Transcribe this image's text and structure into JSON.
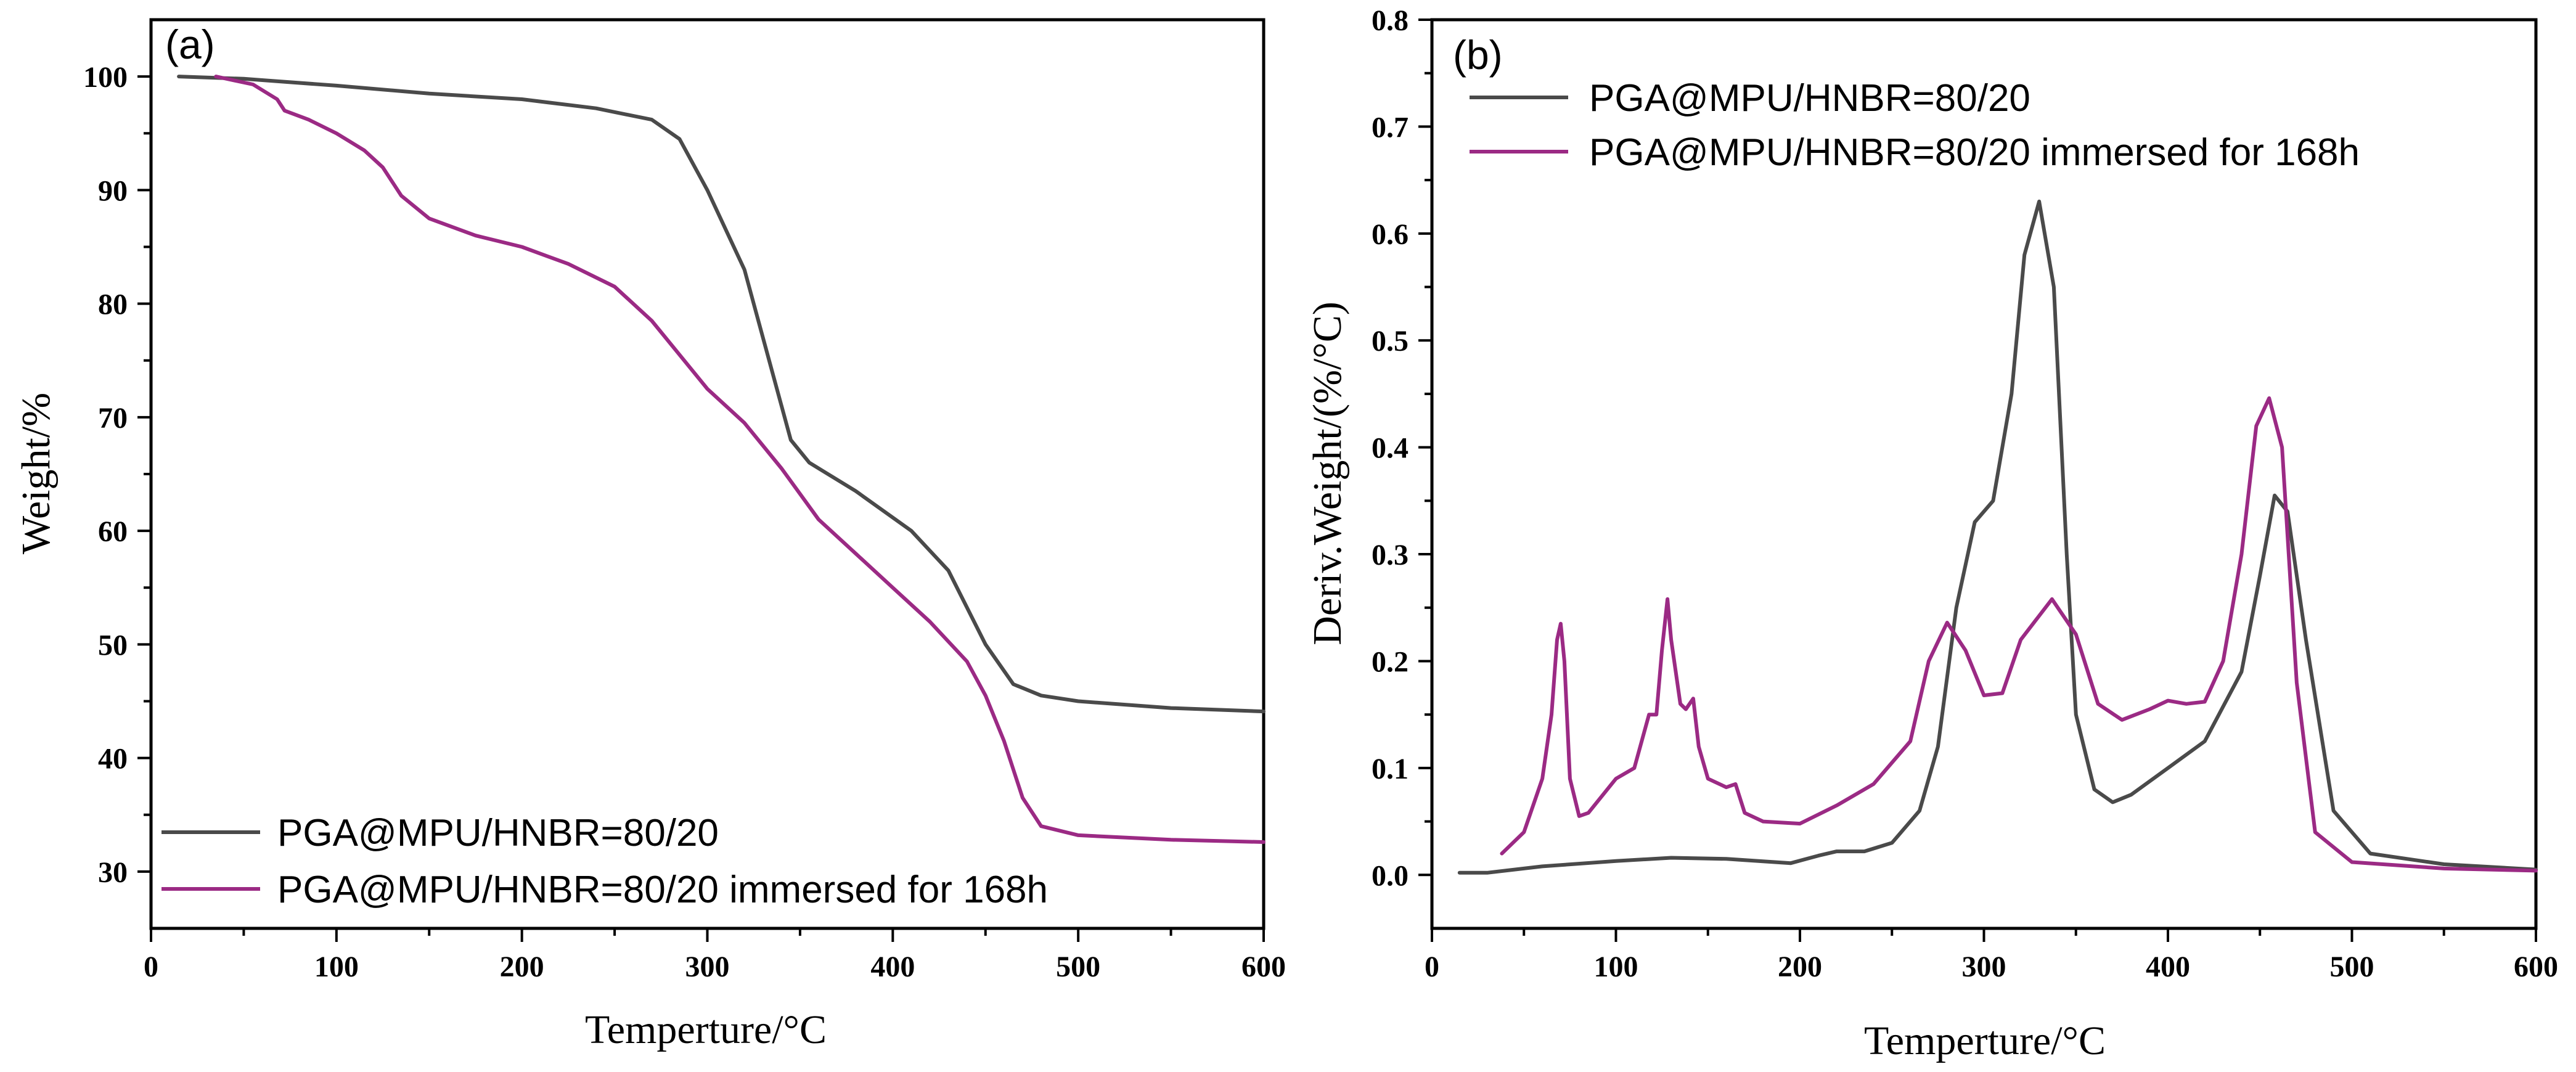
{
  "chart_data": [
    {
      "type": "line",
      "panel_label": "(a)",
      "xlabel": "Temperture/°C",
      "ylabel": "Weight/%",
      "xlim": [
        0,
        600
      ],
      "ylim": [
        25,
        105
      ],
      "xticks": [
        0,
        100,
        200,
        300,
        400,
        500,
        600
      ],
      "yticks": [
        30,
        40,
        50,
        60,
        70,
        80,
        90,
        100
      ],
      "legend_position": "bottom-left",
      "series": [
        {
          "name": "PGA@MPU/HNBR=80/20",
          "color": "#4a4a4a",
          "x": [
            15,
            50,
            100,
            150,
            200,
            240,
            270,
            285,
            300,
            320,
            335,
            345,
            355,
            380,
            410,
            430,
            450,
            465,
            480,
            500,
            550,
            600
          ],
          "y": [
            100,
            99.8,
            99.2,
            98.5,
            98.0,
            97.2,
            96.2,
            94.5,
            90,
            83,
            74,
            68,
            66,
            63.5,
            60,
            56.5,
            50,
            46.5,
            45.5,
            45.0,
            44.4,
            44.1
          ]
        },
        {
          "name": "PGA@MPU/HNBR=80/20 immersed for 168h",
          "color": "#9b2a84",
          "x": [
            35,
            55,
            68,
            72,
            85,
            100,
            115,
            125,
            135,
            150,
            175,
            200,
            225,
            250,
            270,
            285,
            300,
            320,
            340,
            360,
            380,
            400,
            420,
            440,
            450,
            460,
            470,
            480,
            500,
            550,
            600
          ],
          "y": [
            100,
            99.3,
            98.0,
            97.0,
            96.2,
            95.0,
            93.5,
            92.0,
            89.5,
            87.5,
            86.0,
            85.0,
            83.5,
            81.5,
            78.5,
            75.5,
            72.5,
            69.5,
            65.5,
            61.0,
            58.0,
            55.0,
            52.0,
            48.5,
            45.5,
            41.5,
            36.5,
            34.0,
            33.2,
            32.8,
            32.6
          ]
        }
      ]
    },
    {
      "type": "line",
      "panel_label": "(b)",
      "xlabel": "Temperture/°C",
      "ylabel": "Deriv.Weight/(%/°C)",
      "xlim": [
        0,
        600
      ],
      "ylim": [
        -0.05,
        0.8
      ],
      "xticks": [
        0,
        100,
        200,
        300,
        400,
        500,
        600
      ],
      "yticks": [
        0.0,
        0.1,
        0.2,
        0.3,
        0.4,
        0.5,
        0.6,
        0.7,
        0.8
      ],
      "legend_position": "top-left",
      "series": [
        {
          "name": "PGA@MPU/HNBR=80/20",
          "color": "#4a4a4a",
          "x": [
            15,
            30,
            60,
            100,
            130,
            160,
            195,
            210,
            220,
            235,
            250,
            265,
            275,
            285,
            295,
            305,
            315,
            322,
            330,
            338,
            345,
            350,
            360,
            370,
            380,
            400,
            420,
            440,
            450,
            458,
            465,
            475,
            490,
            510,
            550,
            600
          ],
          "y": [
            0.002,
            0.002,
            0.008,
            0.013,
            0.016,
            0.015,
            0.011,
            0.018,
            0.022,
            0.022,
            0.03,
            0.06,
            0.12,
            0.25,
            0.33,
            0.35,
            0.45,
            0.58,
            0.63,
            0.55,
            0.3,
            0.15,
            0.08,
            0.068,
            0.075,
            0.1,
            0.125,
            0.19,
            0.28,
            0.355,
            0.34,
            0.22,
            0.06,
            0.02,
            0.01,
            0.005
          ]
        },
        {
          "name": "PGA@MPU/HNBR=80/20 immersed for 168h",
          "color": "#9b2a84",
          "x": [
            38,
            50,
            60,
            65,
            68,
            70,
            72,
            75,
            80,
            85,
            100,
            110,
            118,
            122,
            125,
            128,
            130,
            135,
            138,
            142,
            145,
            150,
            160,
            165,
            170,
            180,
            200,
            220,
            240,
            260,
            270,
            280,
            290,
            300,
            310,
            320,
            337,
            350,
            362,
            375,
            390,
            400,
            410,
            420,
            430,
            440,
            448,
            455,
            462,
            470,
            480,
            500,
            550,
            600
          ],
          "y": [
            0.02,
            0.04,
            0.09,
            0.15,
            0.22,
            0.235,
            0.2,
            0.09,
            0.055,
            0.058,
            0.09,
            0.1,
            0.15,
            0.15,
            0.21,
            0.258,
            0.22,
            0.16,
            0.155,
            0.165,
            0.12,
            0.09,
            0.082,
            0.085,
            0.058,
            0.05,
            0.048,
            0.065,
            0.085,
            0.125,
            0.2,
            0.236,
            0.21,
            0.168,
            0.17,
            0.22,
            0.258,
            0.225,
            0.16,
            0.145,
            0.155,
            0.163,
            0.16,
            0.162,
            0.2,
            0.3,
            0.42,
            0.446,
            0.4,
            0.18,
            0.04,
            0.012,
            0.006,
            0.004
          ]
        }
      ]
    }
  ]
}
